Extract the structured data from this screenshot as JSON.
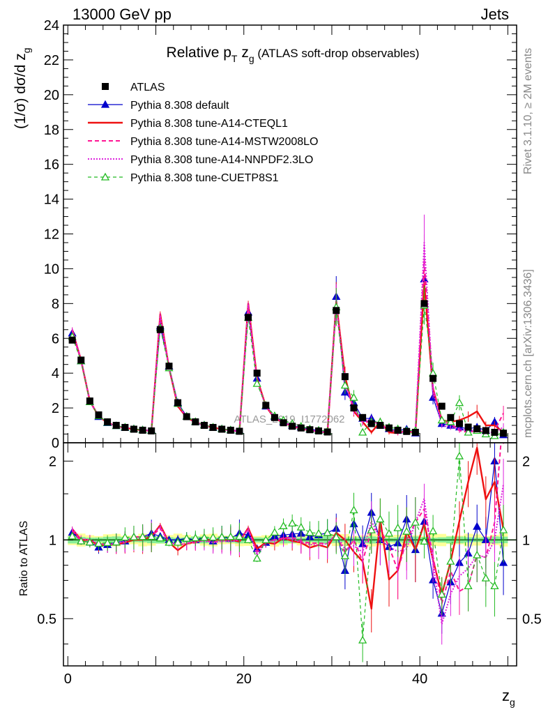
{
  "header": {
    "left": "13000 GeV pp",
    "right": "Jets"
  },
  "title": {
    "main": "Relative p",
    "sub_t": "T",
    "mid": " z",
    "sub_g": "g",
    "rest": " (ATLAS soft-drop observables)"
  },
  "side_labels": {
    "rivet": "Rivet 3.1.10, ≥ 2M events",
    "mcplots": "mcplots.cern.ch [arXiv:1306.3436]"
  },
  "watermark": "ATLAS_2019_I1772062",
  "axes": {
    "ylabel_main": "(1/σ) dσ/d z",
    "ylabel_main_sub": "g",
    "ylabel_ratio": "Ratio to ATLAS",
    "xlabel": "z",
    "xlabel_sub": "g"
  },
  "colors": {
    "atlas": "#000000",
    "default": "#0000cc",
    "cteql1": "#ee1111",
    "mstw": "#ff1493",
    "nnpdf": "#dd22dd",
    "cuetp": "#22bb22",
    "band_stat": "#88ee99",
    "band_syst": "#ffff99",
    "ratio_line": "#116611"
  },
  "chart_data": {
    "type": "scatter",
    "xlim": [
      -0.5,
      51
    ],
    "ylim": [
      0,
      24
    ],
    "ratio_ylim": [
      0.33,
      2.35
    ],
    "x_ticks": [
      0,
      20,
      40
    ],
    "y_ticks": [
      0,
      2,
      4,
      6,
      8,
      10,
      12,
      14,
      16,
      18,
      20,
      22,
      24
    ],
    "ratio_ticks": [
      0.5,
      1,
      2
    ],
    "legend": [
      {
        "key": "atlas",
        "label": "ATLAS",
        "marker": "square",
        "line": "none"
      },
      {
        "key": "default",
        "label": "Pythia 8.308 default",
        "marker": "triangle",
        "line": "solid"
      },
      {
        "key": "cteql1",
        "label": "Pythia 8.308 tune-A14-CTEQL1",
        "marker": "none",
        "line": "solid-thick"
      },
      {
        "key": "mstw",
        "label": "Pythia 8.308 tune-A14-MSTW2008LO",
        "marker": "none",
        "line": "dashed"
      },
      {
        "key": "nnpdf",
        "label": "Pythia 8.308 tune-A14-NNPDF2.3LO",
        "marker": "none",
        "line": "dotted"
      },
      {
        "key": "cuetp",
        "label": "Pythia 8.308 tune-CUETP8S1",
        "marker": "open-triangle",
        "line": "dashed"
      }
    ],
    "x": [
      0.5,
      1.5,
      2.5,
      3.5,
      4.5,
      5.5,
      6.5,
      7.5,
      8.5,
      9.5,
      10.5,
      11.5,
      12.5,
      13.5,
      14.5,
      15.5,
      16.5,
      17.5,
      18.5,
      19.5,
      20.5,
      21.5,
      22.5,
      23.5,
      24.5,
      25.5,
      26.5,
      27.5,
      28.5,
      29.5,
      30.5,
      31.5,
      32.5,
      33.5,
      34.5,
      35.5,
      36.5,
      37.5,
      38.5,
      39.5,
      40.5,
      41.5,
      42.5,
      43.5,
      44.5,
      45.5,
      46.5,
      47.5,
      48.5,
      49.5
    ],
    "atlas": [
      5.9,
      4.75,
      2.4,
      1.6,
      1.2,
      1.0,
      0.88,
      0.78,
      0.72,
      0.68,
      6.5,
      4.4,
      2.3,
      1.5,
      1.2,
      1.0,
      0.88,
      0.78,
      0.72,
      0.66,
      7.2,
      4.0,
      2.15,
      1.45,
      1.15,
      0.95,
      0.85,
      0.75,
      0.68,
      0.62,
      7.6,
      3.8,
      2.0,
      1.45,
      1.1,
      1.0,
      0.85,
      0.72,
      0.65,
      0.6,
      8.0,
      3.7,
      2.1,
      1.45,
      1.1,
      0.9,
      0.8,
      0.7,
      0.6,
      0.55
    ],
    "series": [
      {
        "key": "default",
        "name": "Pythia 8.308 default",
        "values": [
          6.3,
          4.7,
          2.35,
          1.5,
          1.15,
          0.98,
          0.87,
          0.8,
          0.74,
          0.72,
          6.7,
          4.4,
          2.3,
          1.52,
          1.2,
          1.02,
          0.87,
          0.8,
          0.73,
          0.7,
          7.5,
          3.7,
          2.1,
          1.5,
          1.2,
          1.0,
          0.9,
          0.77,
          0.71,
          0.66,
          8.4,
          2.9,
          2.3,
          1.4,
          1.4,
          1.0,
          0.8,
          0.7,
          0.78,
          0.55,
          9.4,
          2.6,
          1.1,
          1.0,
          0.9,
          0.8,
          0.9,
          0.7,
          1.2,
          0.45
        ]
      },
      {
        "key": "cteql1",
        "name": "Pythia 8.308 tune-A14-CTEQL1",
        "values": [
          6.5,
          4.75,
          2.4,
          1.52,
          1.15,
          0.96,
          0.86,
          0.78,
          0.72,
          0.7,
          7.4,
          4.3,
          2.1,
          1.45,
          1.18,
          1.0,
          0.88,
          0.78,
          0.72,
          0.65,
          8.0,
          3.7,
          2.1,
          1.4,
          1.17,
          0.94,
          0.83,
          0.7,
          0.65,
          0.58,
          8.1,
          3.8,
          1.8,
          1.2,
          0.6,
          1.2,
          0.6,
          0.55,
          0.7,
          0.55,
          9.2,
          3.1,
          1.3,
          1.2,
          1.3,
          1.5,
          1.8,
          1.0,
          1.0,
          0.6
        ]
      },
      {
        "key": "mstw",
        "name": "Pythia 8.308 tune-A14-MSTW2008LO",
        "values": [
          6.4,
          4.7,
          2.35,
          1.55,
          1.15,
          0.96,
          0.86,
          0.8,
          0.74,
          0.7,
          7.2,
          4.3,
          2.2,
          1.45,
          1.17,
          1.0,
          0.86,
          0.78,
          0.72,
          0.66,
          7.9,
          3.6,
          2.1,
          1.45,
          1.17,
          0.97,
          0.84,
          0.73,
          0.66,
          0.6,
          7.9,
          3.4,
          2.0,
          1.2,
          1.2,
          1.1,
          0.8,
          0.55,
          0.65,
          0.7,
          10.5,
          3.2,
          1.2,
          1.1,
          0.7,
          0.6,
          0.7,
          0.6,
          0.7,
          1.7
        ]
      },
      {
        "key": "nnpdf",
        "name": "Pythia 8.308 tune-A14-NNPDF2.3LO",
        "values": [
          6.5,
          4.8,
          2.4,
          1.55,
          1.15,
          0.97,
          0.87,
          0.79,
          0.73,
          0.71,
          7.3,
          4.3,
          2.2,
          1.46,
          1.18,
          0.99,
          0.86,
          0.77,
          0.71,
          0.66,
          7.9,
          3.5,
          2.1,
          1.45,
          1.16,
          0.96,
          0.83,
          0.72,
          0.65,
          0.6,
          8.0,
          3.5,
          1.9,
          1.3,
          1.3,
          1.0,
          0.8,
          0.65,
          0.6,
          0.7,
          11.5,
          3.0,
          1.0,
          0.9,
          0.8,
          0.7,
          0.7,
          0.6,
          0.6,
          0.9
        ]
      },
      {
        "key": "cuetp",
        "name": "Pythia 8.308 tune-CUETP8S1",
        "values": [
          6.1,
          4.7,
          2.35,
          1.55,
          1.17,
          0.98,
          0.9,
          0.8,
          0.74,
          0.7,
          6.6,
          4.3,
          2.25,
          1.52,
          1.22,
          1.02,
          0.9,
          0.8,
          0.74,
          0.68,
          7.2,
          3.4,
          2.15,
          1.55,
          1.3,
          1.1,
          0.95,
          0.8,
          0.72,
          0.66,
          7.8,
          3.3,
          2.6,
          0.6,
          1.2,
          1.2,
          0.9,
          0.8,
          0.7,
          0.7,
          7.9,
          4.0,
          1.3,
          1.2,
          2.3,
          0.6,
          0.7,
          0.5,
          0.4,
          0.6
        ]
      }
    ]
  }
}
